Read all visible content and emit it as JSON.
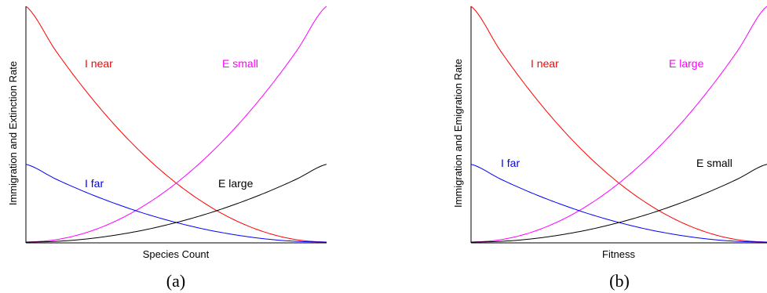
{
  "chart_data": [
    {
      "type": "line",
      "caption": "(a)",
      "xlabel": "Species Count",
      "ylabel": "Immigration and Extinction Rate",
      "xlim": [
        0,
        1
      ],
      "ylim": [
        0,
        1
      ],
      "grid": false,
      "series": [
        {
          "name": "I near",
          "color": "#ff0000",
          "x": [
            0,
            0.1,
            0.2,
            0.3,
            0.4,
            0.5,
            0.6,
            0.7,
            0.8,
            0.9,
            1
          ],
          "y": [
            1.0,
            0.81,
            0.64,
            0.49,
            0.36,
            0.25,
            0.16,
            0.09,
            0.04,
            0.01,
            0.0
          ]
        },
        {
          "name": "E small",
          "color": "#ff00ff",
          "x": [
            0,
            0.1,
            0.2,
            0.3,
            0.4,
            0.5,
            0.6,
            0.7,
            0.8,
            0.9,
            1
          ],
          "y": [
            0.0,
            0.01,
            0.04,
            0.09,
            0.16,
            0.25,
            0.36,
            0.49,
            0.64,
            0.81,
            1.0
          ]
        },
        {
          "name": "I far",
          "color": "#0000ff",
          "x": [
            0,
            0.1,
            0.2,
            0.3,
            0.4,
            0.5,
            0.6,
            0.7,
            0.8,
            0.9,
            1
          ],
          "y": [
            0.33,
            0.267,
            0.211,
            0.162,
            0.119,
            0.083,
            0.053,
            0.03,
            0.013,
            0.003,
            0.0
          ]
        },
        {
          "name": "E large",
          "color": "#000000",
          "x": [
            0,
            0.1,
            0.2,
            0.3,
            0.4,
            0.5,
            0.6,
            0.7,
            0.8,
            0.9,
            1
          ],
          "y": [
            0.0,
            0.003,
            0.013,
            0.03,
            0.053,
            0.083,
            0.119,
            0.162,
            0.211,
            0.267,
            0.33
          ]
        }
      ]
    },
    {
      "type": "line",
      "caption": "(b)",
      "xlabel": "Fitness",
      "ylabel": "Immigration and Emigration Rate",
      "xlim": [
        0,
        1
      ],
      "ylim": [
        0,
        1
      ],
      "grid": false,
      "series": [
        {
          "name": "I near",
          "color": "#ff0000",
          "x": [
            0,
            0.1,
            0.2,
            0.3,
            0.4,
            0.5,
            0.6,
            0.7,
            0.8,
            0.9,
            1
          ],
          "y": [
            1.0,
            0.81,
            0.64,
            0.49,
            0.36,
            0.25,
            0.16,
            0.09,
            0.04,
            0.01,
            0.0
          ]
        },
        {
          "name": "E large",
          "color": "#ff00ff",
          "x": [
            0,
            0.1,
            0.2,
            0.3,
            0.4,
            0.5,
            0.6,
            0.7,
            0.8,
            0.9,
            1
          ],
          "y": [
            0.0,
            0.01,
            0.04,
            0.09,
            0.16,
            0.25,
            0.36,
            0.49,
            0.64,
            0.81,
            1.0
          ]
        },
        {
          "name": "I far",
          "color": "#0000ff",
          "x": [
            0,
            0.1,
            0.2,
            0.3,
            0.4,
            0.5,
            0.6,
            0.7,
            0.8,
            0.9,
            1
          ],
          "y": [
            0.33,
            0.267,
            0.211,
            0.162,
            0.119,
            0.083,
            0.053,
            0.03,
            0.013,
            0.003,
            0.0
          ]
        },
        {
          "name": "E small",
          "color": "#000000",
          "x": [
            0,
            0.1,
            0.2,
            0.3,
            0.4,
            0.5,
            0.6,
            0.7,
            0.8,
            0.9,
            1
          ],
          "y": [
            0.0,
            0.003,
            0.013,
            0.03,
            0.053,
            0.083,
            0.119,
            0.162,
            0.211,
            0.267,
            0.33
          ]
        }
      ]
    }
  ]
}
